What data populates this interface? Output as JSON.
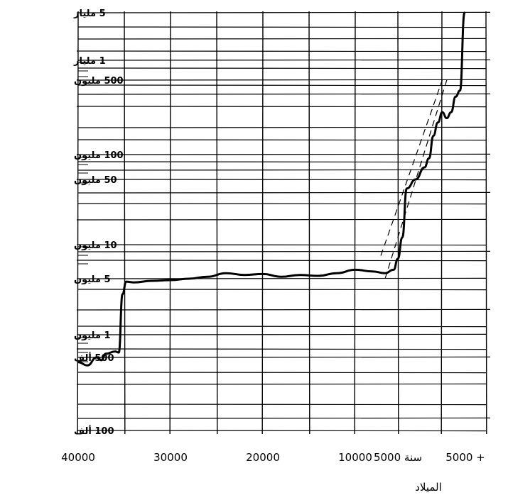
{
  "chart_data": {
    "type": "line",
    "title": "",
    "xlabel": "الميلاد",
    "ylabel": "",
    "x_ticks": [
      {
        "value": -40000,
        "label": "40000"
      },
      {
        "value": -30000,
        "label": "30000"
      },
      {
        "value": -20000,
        "label": "20000"
      },
      {
        "value": -10000,
        "label": "10000"
      },
      {
        "value": -5000,
        "label": "سنة 5000"
      },
      {
        "value": 5000,
        "label": "5000 +"
      }
    ],
    "y_scale": "log",
    "ylim": [
      100000,
      5000000000
    ],
    "y_ticks": [
      {
        "value": 5000000000,
        "label": "5 مليار"
      },
      {
        "value": 1000000000,
        "label": "1 مليار"
      },
      {
        "value": 500000000,
        "label": "500 مليون"
      },
      {
        "value": 100000000,
        "label": "100 مليون"
      },
      {
        "value": 50000000,
        "label": "50 مليون"
      },
      {
        "value": 10000000,
        "label": "10 مليون"
      },
      {
        "value": 5000000,
        "label": "5 مليون"
      },
      {
        "value": 1000000,
        "label": "1 مليون"
      },
      {
        "value": 500000,
        "label": "500 ألف"
      },
      {
        "value": 100000,
        "label": "100 ألف"
      }
    ],
    "grid": true,
    "series": [
      {
        "style": "solid",
        "points": [
          [
            -40000,
            450000
          ],
          [
            -39000,
            420000
          ],
          [
            -38000,
            500000
          ],
          [
            -37500,
            470000
          ],
          [
            -37000,
            560000
          ],
          [
            -36000,
            600000
          ],
          [
            -35600,
            580000
          ],
          [
            -35200,
            3200000
          ],
          [
            -34800,
            4600000
          ],
          [
            -34000,
            4500000
          ],
          [
            -32000,
            4700000
          ],
          [
            -30000,
            4800000
          ],
          [
            -28000,
            5000000
          ],
          [
            -26000,
            5200000
          ],
          [
            -24000,
            5600000
          ],
          [
            -22000,
            5400000
          ],
          [
            -20000,
            5500000
          ],
          [
            -18000,
            5200000
          ],
          [
            -16000,
            5400000
          ],
          [
            -14000,
            5300000
          ],
          [
            -12000,
            5600000
          ],
          [
            -10000,
            6000000
          ],
          [
            -8000,
            5800000
          ],
          [
            -6500,
            5600000
          ],
          [
            -5500,
            6000000
          ],
          [
            -5000,
            7500000
          ],
          [
            -4500,
            12000000
          ],
          [
            -4000,
            40000000
          ],
          [
            -3000,
            50000000
          ],
          [
            -2000,
            70000000
          ],
          [
            -1500,
            90000000
          ],
          [
            -1000,
            150000000
          ],
          [
            -500,
            200000000
          ],
          [
            0,
            250000000
          ],
          [
            500,
            220000000
          ],
          [
            1000,
            250000000
          ],
          [
            1500,
            350000000
          ],
          [
            2000,
            400000000
          ],
          [
            2500,
            5000000000
          ]
        ]
      },
      {
        "style": "dashed",
        "points": [
          [
            -7000,
            8000000
          ],
          [
            0,
            500000000
          ]
        ]
      },
      {
        "style": "dashed",
        "points": [
          [
            -6500,
            5000000
          ],
          [
            500,
            500000000
          ]
        ]
      }
    ]
  }
}
